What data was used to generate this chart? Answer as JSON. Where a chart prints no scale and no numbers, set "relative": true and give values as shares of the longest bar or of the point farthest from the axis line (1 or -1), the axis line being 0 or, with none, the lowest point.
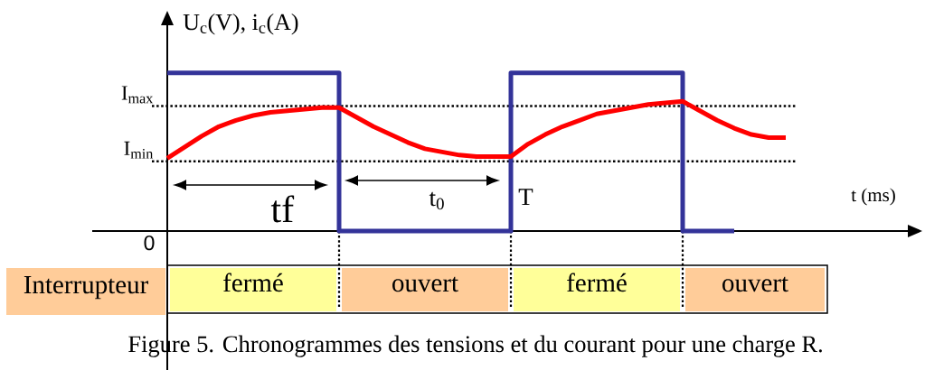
{
  "chart_data": {
    "type": "line",
    "relative": true,
    "ylabel": "U$_{c}$(V), i$_{c}$(A)",
    "xlabel": "t (ms)",
    "categories": [
      null,
      null,
      null,
      null,
      null,
      null,
      null,
      null,
      null,
      null,
      null,
      null,
      null,
      null,
      null,
      null,
      null,
      null,
      null,
      null,
      null,
      null,
      null,
      null,
      null,
      null,
      null,
      null,
      null,
      null,
      null,
      null,
      null,
      null,
      null,
      null,
      null
    ],
    "series": [
      {
        "type": "step",
        "color": "#333399",
        "values": [
          1,
          1,
          1,
          1,
          1,
          1,
          1,
          1,
          1,
          1,
          0,
          0,
          0,
          0,
          0,
          0,
          0,
          0,
          0,
          0,
          1,
          1,
          1,
          1,
          1,
          1,
          1,
          1,
          1,
          1,
          0,
          0,
          0,
          0,
          null,
          null,
          null
        ]
      },
      {
        "color": "#ff0000",
        "values": [
          0.46,
          0.53,
          0.6,
          0.66,
          0.7,
          0.73,
          0.75,
          0.76,
          0.77,
          0.78,
          0.78,
          0.72,
          0.66,
          0.61,
          0.56,
          0.52,
          0.5,
          0.48,
          0.47,
          0.47,
          0.47,
          0.55,
          0.61,
          0.66,
          0.7,
          0.74,
          0.76,
          0.78,
          0.8,
          0.81,
          0.82,
          0.76,
          0.7,
          0.65,
          0.61,
          0.59,
          0.59
        ]
      }
    ],
    "ref_lines": [
      {
        "axis": "y",
        "value": 0.79,
        "label": "I$_{max}$",
        "line_style": "dotted",
        "color": "#000000"
      },
      {
        "axis": "y",
        "value": 0.44,
        "label": "I$_{min}$",
        "line_style": "dotted",
        "color": "#000000"
      }
    ],
    "annotations": [
      "tf",
      "t$_{0}$",
      "T",
      "0",
      "Interrupteur",
      "fermé",
      "ouvert",
      "fermé",
      "ouvert",
      "Figure 5. Chronogrammes des tensions et du courant pour une charge R."
    ]
  }
}
